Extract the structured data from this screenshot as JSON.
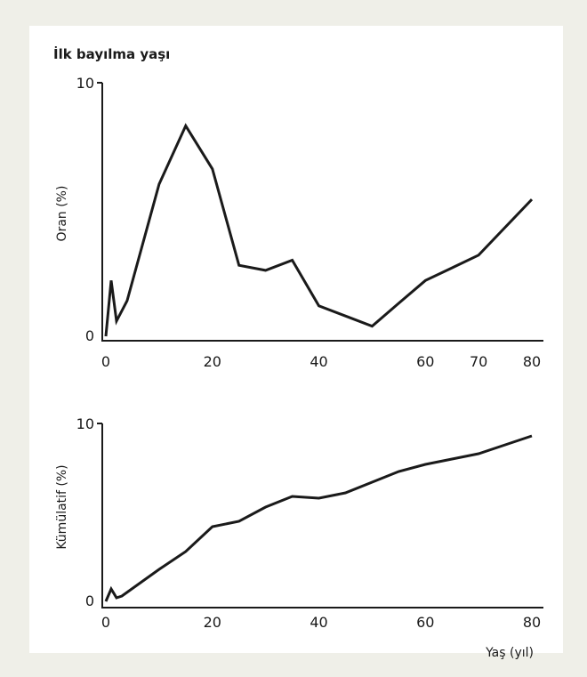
{
  "chart_data": [
    {
      "type": "line",
      "title": "İlk bayılma yaşı",
      "xlabel": "",
      "ylabel": "Oran (%)",
      "x_ticks": [
        0,
        20,
        40,
        60,
        70,
        80
      ],
      "y_ticks": [
        0,
        10
      ],
      "xlim": [
        0,
        82
      ],
      "ylim": [
        0,
        10
      ],
      "grid": false,
      "series": [
        {
          "x": [
            0,
            1,
            2,
            4,
            10,
            15,
            20,
            25,
            30,
            35,
            40,
            45,
            50,
            55,
            60,
            65,
            70,
            75,
            80
          ],
          "values": [
            0,
            2.2,
            0.6,
            1.4,
            6.0,
            8.3,
            6.6,
            2.8,
            2.6,
            3.0,
            1.2,
            0.8,
            0.4,
            1.3,
            2.2,
            2.7,
            3.2,
            4.3,
            5.4
          ]
        }
      ]
    },
    {
      "type": "line",
      "title": "",
      "xlabel": "Yaş (yıl)",
      "ylabel": "Kümülatif (%)",
      "x_ticks": [
        0,
        20,
        40,
        60,
        80
      ],
      "y_ticks": [
        0,
        10
      ],
      "xlim": [
        0,
        82
      ],
      "ylim": [
        0,
        10
      ],
      "grid": false,
      "series": [
        {
          "x": [
            0,
            1,
            2,
            3,
            10,
            15,
            20,
            25,
            30,
            35,
            40,
            45,
            50,
            55,
            60,
            65,
            70,
            75,
            80
          ],
          "values": [
            0,
            0.7,
            0.2,
            0.3,
            1.8,
            2.8,
            4.2,
            4.5,
            5.3,
            5.9,
            5.8,
            6.1,
            6.7,
            7.3,
            7.7,
            8.0,
            8.3,
            8.8,
            9.3
          ]
        }
      ]
    }
  ]
}
